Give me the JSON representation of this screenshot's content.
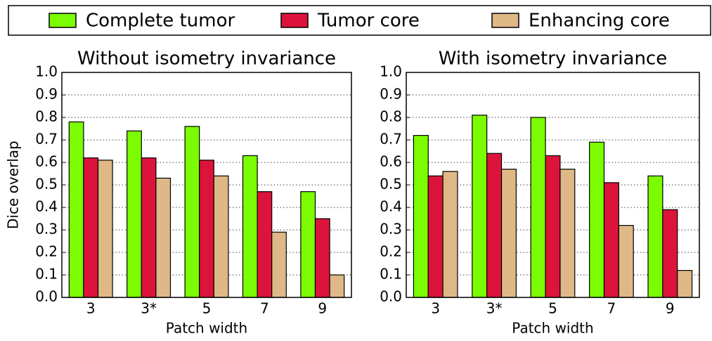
{
  "chart_data": [
    {
      "type": "bar",
      "title": "Without isometry invariance",
      "xlabel": "Patch width",
      "ylabel": "Dice overlap",
      "categories": [
        "3",
        "3*",
        "5",
        "7",
        "9"
      ],
      "series": [
        {
          "name": "Complete tumor",
          "color": "#7cfc00",
          "values": [
            0.78,
            0.74,
            0.76,
            0.63,
            0.47
          ]
        },
        {
          "name": "Tumor core",
          "color": "#dc143c",
          "values": [
            0.62,
            0.62,
            0.61,
            0.47,
            0.35
          ]
        },
        {
          "name": "Enhancing core",
          "color": "#deb887",
          "values": [
            0.61,
            0.53,
            0.54,
            0.29,
            0.1
          ]
        }
      ],
      "ylim": [
        0,
        1
      ],
      "yticks": [
        {
          "value": 0,
          "label": "0.0"
        },
        0.1,
        0.2,
        0.3,
        0.4,
        0.5,
        0.6,
        0.7,
        0.8,
        0.9,
        {
          "value": 1,
          "label": "1.0"
        }
      ],
      "grid": true
    },
    {
      "type": "bar",
      "title": "With isometry invariance",
      "xlabel": "Patch width",
      "categories": [
        "3",
        "3*",
        "5",
        "7",
        "9"
      ],
      "series": [
        {
          "name": "Complete tumor",
          "color": "#7cfc00",
          "values": [
            0.72,
            0.81,
            0.8,
            0.69,
            0.54
          ]
        },
        {
          "name": "Tumor core",
          "color": "#dc143c",
          "values": [
            0.54,
            0.64,
            0.63,
            0.51,
            0.39
          ]
        },
        {
          "name": "Enhancing core",
          "color": "#deb887",
          "values": [
            0.56,
            0.57,
            0.57,
            0.32,
            0.12
          ]
        }
      ],
      "ylim": [
        0,
        1
      ],
      "yticks": [
        {
          "value": 0,
          "label": "0.0"
        },
        0.1,
        0.2,
        0.3,
        0.4,
        0.5,
        0.6,
        0.7,
        0.8,
        0.9,
        {
          "value": 1,
          "label": "1.0"
        }
      ],
      "grid": true
    }
  ]
}
